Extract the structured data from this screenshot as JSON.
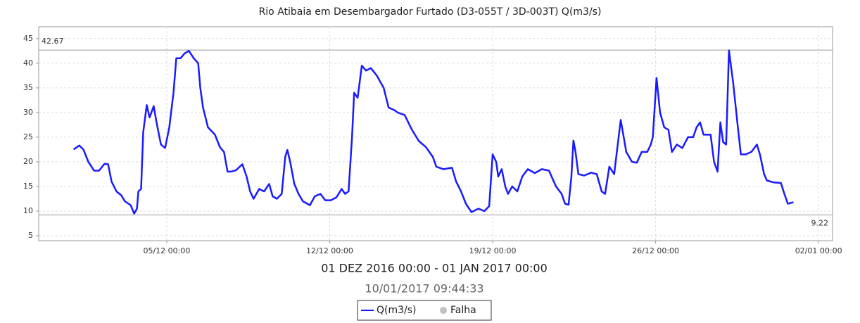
{
  "chart_data": {
    "type": "line",
    "title": "Rio Atibaia em Desembargador Furtado (D3-055T / 3D-003T) Q(m3/s)",
    "x_label": "01 DEZ 2016 00:00 - 01 JAN 2017 00:00",
    "timestamp": "10/01/2017 09:44:33",
    "x": [
      0,
      0.24,
      0.42,
      0.63,
      0.88,
      1.09,
      1.33,
      1.48,
      1.63,
      1.84,
      2.05,
      2.2,
      2.45,
      2.6,
      2.72,
      2.78,
      2.9,
      2.99,
      3.14,
      3.26,
      3.44,
      3.56,
      3.75,
      3.93,
      4.11,
      4.29,
      4.41,
      4.59,
      4.77,
      4.95,
      5.16,
      5.35,
      5.44,
      5.56,
      5.77,
      6.07,
      6.28,
      6.46,
      6.61,
      6.76,
      6.98,
      7.25,
      7.43,
      7.58,
      7.73,
      7.97,
      8.18,
      8.4,
      8.55,
      8.73,
      8.94,
      9.09,
      9.18,
      9.3,
      9.48,
      9.66,
      9.85,
      10.15,
      10.36,
      10.6,
      10.81,
      11.05,
      11.29,
      11.51,
      11.66,
      11.81,
      11.96,
      12.05,
      12.2,
      12.38,
      12.56,
      12.77,
      13.02,
      13.32,
      13.53,
      13.77,
      13.92,
      14.22,
      14.53,
      14.83,
      15.13,
      15.43,
      15.58,
      15.89,
      16.25,
      16.43,
      16.64,
      16.85,
      17.09,
      17.39,
      17.64,
      17.85,
      18.0,
      18.15,
      18.24,
      18.39,
      18.54,
      18.66,
      18.84,
      19.06,
      19.27,
      19.51,
      19.81,
      20.11,
      20.42,
      20.72,
      20.96,
      21.11,
      21.26,
      21.38,
      21.47,
      21.56,
      21.68,
      21.93,
      22.23,
      22.47,
      22.68,
      22.83,
      23.01,
      23.22,
      23.5,
      23.74,
      23.98,
      24.19,
      24.4,
      24.64,
      24.79,
      24.88,
      25.04,
      25.19,
      25.37,
      25.55,
      25.7,
      25.91,
      26.15,
      26.39,
      26.61,
      26.76,
      26.91,
      27.06,
      27.36,
      27.51,
      27.66,
      27.78,
      27.9,
      28.03,
      28.15,
      28.33,
      28.51,
      28.66,
      28.87,
      29.11,
      29.35,
      29.48,
      29.66,
      29.78,
      30.08,
      30.38,
      30.53,
      30.68,
      30.92
    ],
    "series": [
      {
        "name": "Q(m3/s)",
        "color": "#1a1aff",
        "values": [
          22.5,
          23.3,
          22.5,
          20,
          18.2,
          18.2,
          19.6,
          19.5,
          16,
          14,
          13.2,
          12,
          11.2,
          9.5,
          10.5,
          14,
          14.5,
          26,
          31.5,
          29,
          31.3,
          28,
          23.5,
          22.8,
          27,
          34,
          41,
          41,
          42,
          42.5,
          41,
          40,
          35,
          31,
          27,
          25.5,
          23,
          22,
          18,
          18,
          18.3,
          19.5,
          17,
          14,
          12.5,
          14.5,
          14,
          15.5,
          13,
          12.5,
          13.5,
          21,
          22.4,
          20,
          15.5,
          13.5,
          12,
          11.2,
          13,
          13.5,
          12.2,
          12.2,
          12.8,
          14.5,
          13.5,
          14,
          25,
          34,
          33,
          39.5,
          38.5,
          39,
          37.5,
          35,
          31,
          30.5,
          30,
          29.5,
          26.5,
          24.2,
          23,
          21,
          19,
          18.5,
          18.8,
          16,
          14,
          11.5,
          9.8,
          10.5,
          10,
          11,
          21.5,
          20,
          17,
          18.5,
          15,
          13.5,
          15,
          14,
          17,
          18.5,
          17.7,
          18.5,
          18.2,
          15,
          13.5,
          11.5,
          11.3,
          17,
          24.3,
          22,
          17.5,
          17.2,
          17.8,
          17.5,
          14,
          13.5,
          19,
          17.5,
          28.5,
          22,
          20,
          19.8,
          22,
          22,
          23.5,
          25,
          37,
          30,
          27,
          26.5,
          22,
          23.5,
          22.8,
          25,
          25,
          27,
          28,
          25.5,
          25.5,
          20,
          18,
          28,
          24,
          23.5,
          42.6,
          36,
          28,
          21.5,
          21.5,
          22,
          23.5,
          21.5,
          17.5,
          16.2,
          15.8,
          15.7,
          13.5,
          11.5,
          11.8
        ]
      }
    ],
    "falha": {
      "name": "Falha",
      "color": "#c0c0c0"
    },
    "max_line": 42.67,
    "min_line": 9.22,
    "xlim": [
      -1.5,
      32.6
    ],
    "xticks": [
      {
        "value": 4,
        "label": "05/12 00:00"
      },
      {
        "value": 11,
        "label": "12/12 00:00"
      },
      {
        "value": 18,
        "label": "19/12 00:00"
      },
      {
        "value": 25,
        "label": "26/12 00:00"
      },
      {
        "value": 32,
        "label": "02/01 00:00"
      }
    ],
    "ylim": [
      4,
      47.4
    ],
    "yticks": [
      5,
      10,
      15,
      20,
      25,
      30,
      35,
      40,
      45
    ],
    "grid": true
  }
}
